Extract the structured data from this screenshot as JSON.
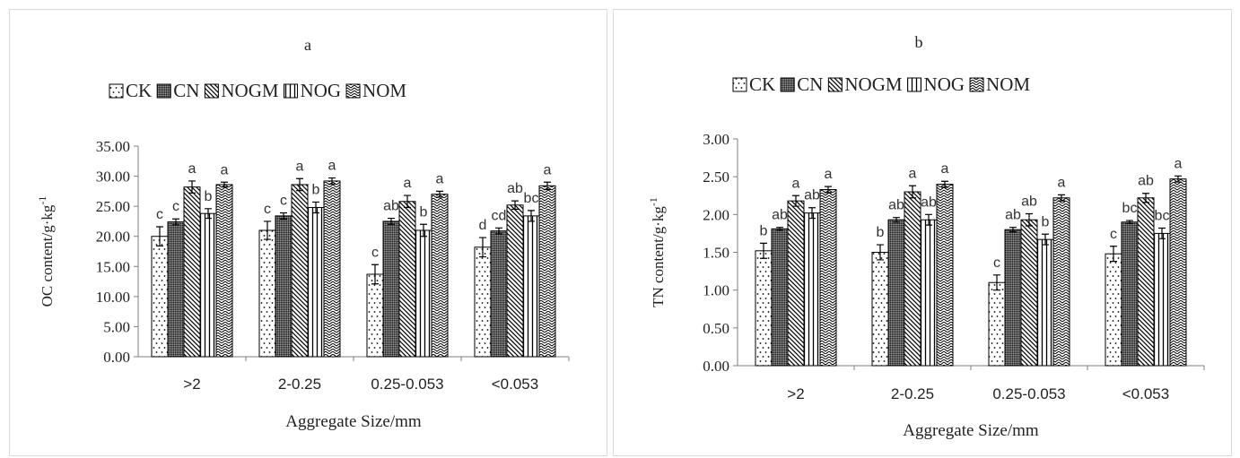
{
  "chart_data": [
    {
      "type": "bar",
      "title": "a",
      "xlabel": "Aggregate Size/mm",
      "ylabel": "OC content/g·kg",
      "ylabel_sup": "-1",
      "categories": [
        ">2",
        "2-0.25",
        "0.25-0.053",
        "<0.053"
      ],
      "ylim": [
        0,
        35
      ],
      "yticks": [
        "0.00",
        "5.00",
        "10.00",
        "15.00",
        "20.00",
        "25.00",
        "30.00",
        "35.00"
      ],
      "grid": false,
      "legend_position": "top",
      "series": [
        {
          "name": "CK",
          "values": [
            20.0,
            21.0,
            13.7,
            18.2
          ],
          "errors": [
            1.6,
            1.5,
            1.6,
            1.6
          ],
          "letters": [
            "c",
            "c",
            "c",
            "d"
          ]
        },
        {
          "name": "CN",
          "values": [
            22.4,
            23.4,
            22.5,
            20.9
          ],
          "errors": [
            0.5,
            0.5,
            0.5,
            0.5
          ],
          "letters": [
            "c",
            "c",
            "ab",
            "cd"
          ]
        },
        {
          "name": "NOGM",
          "values": [
            28.2,
            28.6,
            25.8,
            25.2
          ],
          "errors": [
            1.0,
            1.0,
            1.0,
            0.7
          ],
          "letters": [
            "a",
            "a",
            "a",
            "ab"
          ]
        },
        {
          "name": "NOG",
          "values": [
            23.8,
            24.8,
            21.0,
            23.4
          ],
          "errors": [
            0.8,
            0.9,
            1.0,
            0.9
          ],
          "letters": [
            "b",
            "b",
            "b",
            "bc"
          ]
        },
        {
          "name": "NOM",
          "values": [
            28.6,
            29.2,
            27.0,
            28.4
          ],
          "errors": [
            0.4,
            0.5,
            0.5,
            0.6
          ],
          "letters": [
            "a",
            "a",
            "a",
            "a"
          ]
        }
      ]
    },
    {
      "type": "bar",
      "title": "b",
      "xlabel": "Aggregate Size/mm",
      "ylabel": "TN content/g·kg",
      "ylabel_sup": "-1",
      "categories": [
        ">2",
        "2-0.25",
        "0.25-0.053",
        "<0.053"
      ],
      "ylim": [
        0,
        3
      ],
      "yticks": [
        "0.00",
        "0.50",
        "1.00",
        "1.50",
        "2.00",
        "2.50",
        "3.00"
      ],
      "grid": false,
      "legend_position": "top",
      "series": [
        {
          "name": "CK",
          "values": [
            1.52,
            1.5,
            1.1,
            1.48
          ],
          "errors": [
            0.1,
            0.1,
            0.1,
            0.1
          ],
          "letters": [
            "b",
            "b",
            "c",
            "c"
          ]
        },
        {
          "name": "CN",
          "values": [
            1.81,
            1.93,
            1.8,
            1.9
          ],
          "errors": [
            0.02,
            0.03,
            0.03,
            0.02
          ],
          "letters": [
            "ab",
            "ab",
            "ab",
            "bc"
          ]
        },
        {
          "name": "NOGM",
          "values": [
            2.18,
            2.3,
            1.93,
            2.22
          ],
          "errors": [
            0.07,
            0.08,
            0.08,
            0.06
          ],
          "letters": [
            "a",
            "a",
            "ab",
            "ab"
          ]
        },
        {
          "name": "NOG",
          "values": [
            2.02,
            1.93,
            1.67,
            1.75
          ],
          "errors": [
            0.07,
            0.07,
            0.07,
            0.07
          ],
          "letters": [
            "ab",
            "ab",
            "b",
            "bc"
          ]
        },
        {
          "name": "NOM",
          "values": [
            2.33,
            2.4,
            2.22,
            2.47
          ],
          "errors": [
            0.04,
            0.04,
            0.04,
            0.04
          ],
          "letters": [
            "a",
            "a",
            "a",
            "a"
          ]
        }
      ]
    }
  ]
}
